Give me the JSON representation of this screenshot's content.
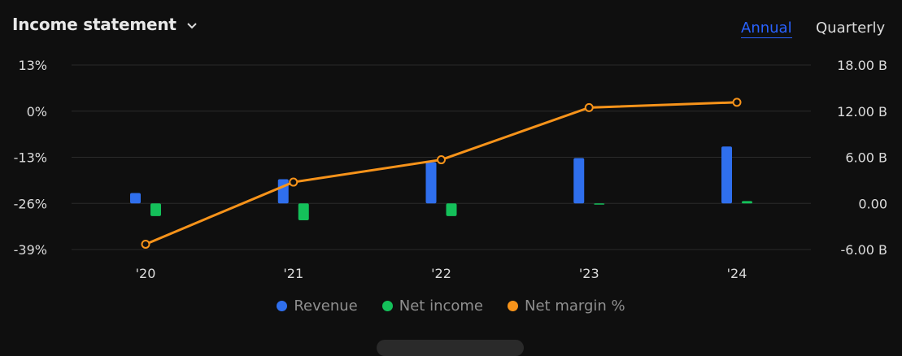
{
  "header": {
    "title": "Income statement"
  },
  "periods": {
    "annual": "Annual",
    "quarterly": "Quarterly"
  },
  "colors": {
    "revenue": "#2f6fed",
    "net_income": "#14c05a",
    "net_margin": "#f7931a"
  },
  "chart_data": {
    "type": "bar",
    "categories": [
      "'20",
      "'21",
      "'22",
      "'23",
      "'24"
    ],
    "series": [
      {
        "name": "Revenue",
        "axis": "right",
        "values": [
          1.35,
          3.15,
          5.35,
          5.9,
          7.4
        ]
      },
      {
        "name": "Net income",
        "axis": "right",
        "values": [
          -1.65,
          -2.2,
          -1.65,
          -0.15,
          0.3
        ]
      },
      {
        "name": "Net margin %",
        "axis": "left",
        "type": "line",
        "values": [
          -37.5,
          -20.0,
          -13.7,
          1.0,
          2.5
        ]
      }
    ],
    "left_axis": {
      "ticks": [
        "13%",
        "0%",
        "-13%",
        "-26%",
        "-39%"
      ],
      "range": [
        -39,
        13
      ]
    },
    "right_axis": {
      "ticks": [
        "18.00 B",
        "12.00 B",
        "6.00 B",
        "0.00",
        "-6.00 B"
      ],
      "range": [
        -6,
        18
      ],
      "unit": "B"
    },
    "legend": [
      "Revenue",
      "Net income",
      "Net margin %"
    ],
    "grid": true,
    "legend_position": "bottom"
  }
}
